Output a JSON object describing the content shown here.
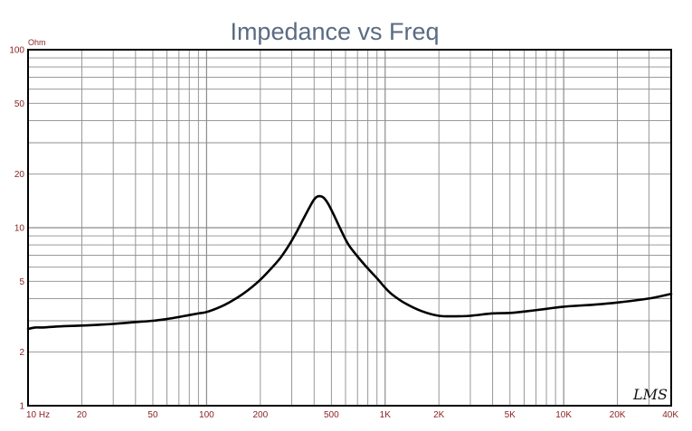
{
  "chart_data": {
    "type": "line",
    "title": "Impedance vs Freq",
    "y_unit_label": "Ohm",
    "x_scale": "log",
    "y_scale": "log",
    "xlim": [
      10,
      40000
    ],
    "ylim": [
      1,
      100
    ],
    "grid": true,
    "x_ticks": [
      {
        "value": 10,
        "label": "10 Hz"
      },
      {
        "value": 20,
        "label": "20"
      },
      {
        "value": 50,
        "label": "50"
      },
      {
        "value": 100,
        "label": "100"
      },
      {
        "value": 200,
        "label": "200"
      },
      {
        "value": 500,
        "label": "500"
      },
      {
        "value": 1000,
        "label": "1K"
      },
      {
        "value": 2000,
        "label": "2K"
      },
      {
        "value": 5000,
        "label": "5K"
      },
      {
        "value": 10000,
        "label": "10K"
      },
      {
        "value": 20000,
        "label": "20K"
      },
      {
        "value": 40000,
        "label": "40K"
      }
    ],
    "y_ticks": [
      {
        "value": 1,
        "label": "1"
      },
      {
        "value": 2,
        "label": "2"
      },
      {
        "value": 5,
        "label": "5"
      },
      {
        "value": 10,
        "label": "10"
      },
      {
        "value": 20,
        "label": "20"
      },
      {
        "value": 50,
        "label": "50"
      },
      {
        "value": 100,
        "label": "100"
      }
    ],
    "series": [
      {
        "color": "#000000",
        "x": [
          10,
          11,
          12,
          14,
          16,
          20,
          25,
          30,
          40,
          50,
          60,
          70,
          80,
          90,
          100,
          120,
          140,
          160,
          180,
          200,
          230,
          260,
          290,
          320,
          350,
          380,
          400,
          420,
          450,
          480,
          520,
          560,
          620,
          700,
          800,
          900,
          1000,
          1100,
          1300,
          1600,
          2000,
          2500,
          3000,
          4000,
          5000,
          6000,
          8000,
          10000,
          15000,
          20000,
          30000,
          40000
        ],
        "y": [
          2.7,
          2.75,
          2.75,
          2.78,
          2.8,
          2.82,
          2.85,
          2.88,
          2.95,
          3.0,
          3.07,
          3.15,
          3.23,
          3.3,
          3.36,
          3.6,
          3.9,
          4.25,
          4.65,
          5.1,
          5.9,
          6.8,
          8.0,
          9.5,
          11.3,
          13.2,
          14.4,
          15.0,
          14.8,
          13.6,
          11.6,
          9.9,
          8.1,
          6.9,
          5.9,
          5.2,
          4.6,
          4.2,
          3.75,
          3.4,
          3.2,
          3.18,
          3.2,
          3.3,
          3.32,
          3.38,
          3.5,
          3.6,
          3.7,
          3.8,
          4.0,
          4.25
        ]
      }
    ]
  },
  "watermark": "LMS"
}
